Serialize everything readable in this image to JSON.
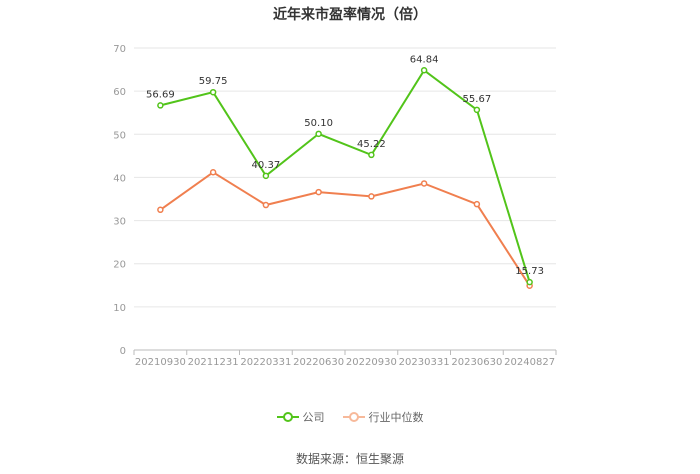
{
  "chart_data": {
    "type": "line",
    "title": "近年来市盈率情况（倍）",
    "categories": [
      "20210930",
      "20211231",
      "20220331",
      "20220630",
      "20220930",
      "20230331",
      "20230630",
      "20240827"
    ],
    "ylim": [
      0,
      70
    ],
    "yticks": [
      0,
      10,
      20,
      30,
      40,
      50,
      60,
      70
    ],
    "grid": true,
    "legend_position": "bottom",
    "series": [
      {
        "name": "公司",
        "color": "#52c41a",
        "values": [
          56.69,
          59.75,
          40.37,
          50.1,
          45.22,
          64.84,
          55.67,
          15.73
        ],
        "labels": [
          "56.69",
          "59.75",
          "40.37",
          "50.10",
          "45.22",
          "64.84",
          "55.67",
          "15.73"
        ]
      },
      {
        "name": "行业中位数",
        "color": "#f07f4f",
        "values": [
          32.5,
          41.2,
          33.6,
          36.6,
          35.6,
          38.6,
          33.8,
          14.9
        ]
      }
    ]
  },
  "source": "数据来源：恒生聚源"
}
